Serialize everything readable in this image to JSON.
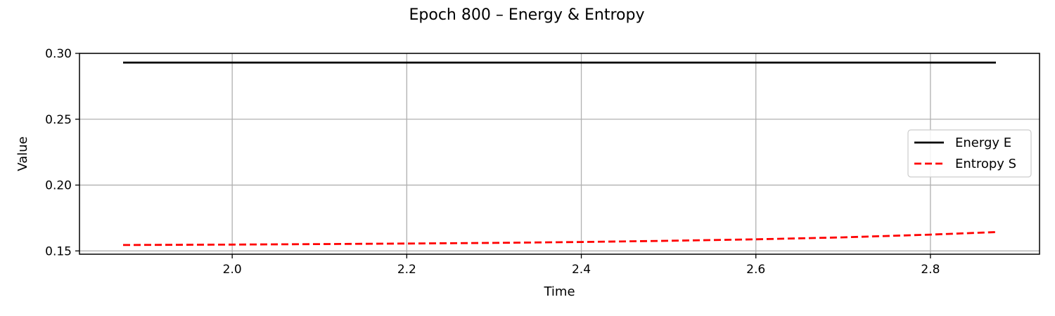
{
  "chart_data": {
    "type": "line",
    "title": "Epoch 800 – Energy & Entropy",
    "xlabel": "Time",
    "ylabel": "Value",
    "xlim": [
      1.825,
      2.925
    ],
    "ylim": [
      0.1475,
      0.3
    ],
    "xticks": [
      2.0,
      2.2,
      2.4,
      2.6,
      2.8
    ],
    "xtick_labels": [
      "2.0",
      "2.2",
      "2.4",
      "2.6",
      "2.8"
    ],
    "yticks": [
      0.15,
      0.2,
      0.25,
      0.3
    ],
    "ytick_labels": [
      "0.15",
      "0.20",
      "0.25",
      "0.30"
    ],
    "grid": true,
    "legend_position": "center-right",
    "series": [
      {
        "name": "Energy E",
        "color": "#000000",
        "style": "solid",
        "x": [
          1.875,
          2.0,
          2.2,
          2.4,
          2.6,
          2.8,
          2.875
        ],
        "y": [
          0.293,
          0.293,
          0.293,
          0.293,
          0.293,
          0.293,
          0.293
        ]
      },
      {
        "name": "Entropy S",
        "color": "#ff0000",
        "style": "dashed",
        "x": [
          1.875,
          2.0,
          2.1,
          2.2,
          2.3,
          2.4,
          2.5,
          2.6,
          2.7,
          2.8,
          2.875
        ],
        "y": [
          0.1545,
          0.1548,
          0.1552,
          0.1556,
          0.1561,
          0.1568,
          0.1577,
          0.1588,
          0.1603,
          0.1624,
          0.1643
        ]
      }
    ]
  }
}
